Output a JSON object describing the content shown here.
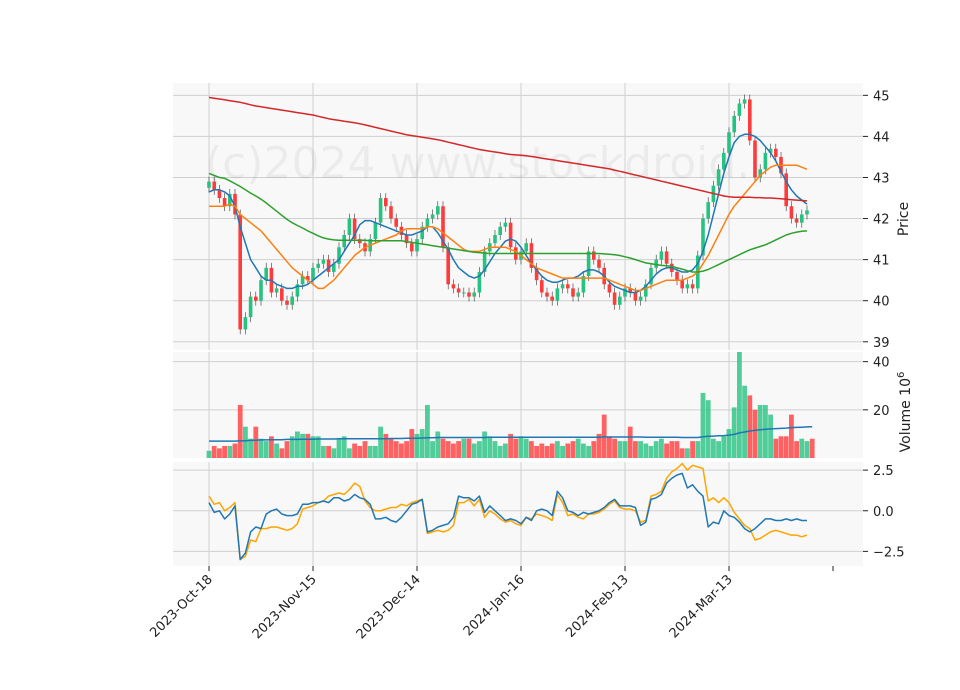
{
  "watermark": "(c)2024 www.stockdroid.",
  "colors": {
    "up": "#26c281",
    "down": "#ff3b3b",
    "ma_short": "#1f77b4",
    "ma_mid": "#ff7f0e",
    "ma_long": "#2ca02c",
    "ma_200": "#d62728",
    "volume_ma": "#1f77b4",
    "osc_main": "#1f77b4",
    "osc_signal": "#ffa500",
    "grid": "#d0d0d0",
    "panel_bg": "#f8f8f8"
  },
  "chart_data": [
    {
      "type": "candlestick",
      "panel": "price",
      "ylabel": "Price",
      "ylim": [
        38.8,
        45.3
      ],
      "yticks": [
        39,
        40,
        41,
        42,
        43,
        44,
        45
      ],
      "x_tick_labels": [
        "2023-Oct-18",
        "2023-Nov-15",
        "2023-Dec-14",
        "2024-Jan-16",
        "2024-Feb-13",
        "2024-Mar-13"
      ],
      "x_tick_index": [
        0,
        20,
        40,
        60,
        80,
        100
      ],
      "grid": true,
      "closes": [
        42.9,
        42.7,
        42.5,
        42.3,
        42.6,
        42.1,
        39.3,
        39.6,
        40.1,
        40.0,
        40.5,
        40.8,
        40.2,
        40.3,
        40.0,
        39.9,
        40.1,
        40.4,
        40.6,
        40.5,
        40.8,
        40.9,
        41.0,
        40.7,
        40.9,
        41.3,
        41.6,
        42.0,
        41.5,
        41.4,
        41.2,
        41.5,
        41.9,
        42.5,
        42.3,
        42.0,
        41.8,
        41.6,
        41.4,
        41.2,
        41.5,
        41.8,
        42.0,
        42.1,
        42.3,
        41.3,
        40.4,
        40.3,
        40.2,
        40.2,
        40.1,
        40.2,
        40.7,
        41.2,
        41.4,
        41.6,
        41.8,
        41.9,
        41.3,
        41.0,
        41.2,
        41.4,
        40.8,
        40.5,
        40.2,
        40.1,
        40.0,
        40.3,
        40.4,
        40.3,
        40.1,
        40.2,
        40.6,
        41.2,
        41.0,
        40.8,
        40.4,
        40.2,
        39.9,
        40.1,
        40.3,
        40.2,
        40.0,
        40.1,
        40.4,
        40.8,
        41.0,
        41.2,
        40.9,
        40.7,
        40.5,
        40.3,
        40.4,
        40.3,
        41.1,
        42.0,
        42.4,
        42.8,
        43.2,
        43.6,
        44.1,
        44.5,
        44.8,
        44.9,
        43.9,
        43.0,
        43.2,
        43.6,
        43.7,
        43.5,
        43.1,
        42.3,
        42.0,
        41.9,
        42.1,
        42.2
      ],
      "series": [
        {
          "name": "",
          "role": "ma_short",
          "values": [
            42.65,
            42.7,
            42.7,
            42.65,
            42.55,
            42.3,
            41.8,
            41.4,
            41.0,
            40.8,
            40.6,
            40.5,
            40.5,
            40.4,
            40.35,
            40.3,
            40.3,
            40.35,
            40.35,
            40.4,
            40.5,
            40.6,
            40.7,
            40.8,
            40.9,
            41.0,
            41.2,
            41.4,
            41.6,
            41.85,
            41.95,
            41.95,
            41.9,
            41.85,
            41.8,
            41.75,
            41.7,
            41.65,
            41.6,
            41.6,
            41.65,
            41.7,
            41.8,
            41.8,
            41.65,
            41.45,
            41.25,
            41.0,
            40.8,
            40.7,
            40.6,
            40.55,
            40.6,
            40.75,
            40.95,
            41.15,
            41.3,
            41.45,
            41.5,
            41.45,
            41.3,
            41.1,
            40.9,
            40.75,
            40.6,
            40.5,
            40.45,
            40.45,
            40.5,
            40.55,
            40.55,
            40.6,
            40.7,
            40.75,
            40.75,
            40.7,
            40.6,
            40.45,
            40.35,
            40.3,
            40.25,
            40.2,
            40.2,
            40.25,
            40.35,
            40.5,
            40.65,
            40.75,
            40.8,
            40.8,
            40.75,
            40.7,
            40.7,
            40.75,
            40.9,
            41.2,
            41.6,
            42.1,
            42.6,
            43.1,
            43.5,
            43.85,
            44.0,
            44.05,
            44.05,
            44.0,
            43.9,
            43.75,
            43.6,
            43.4,
            43.15,
            42.9,
            42.7,
            42.55,
            42.45,
            42.35
          ]
        },
        {
          "name": "",
          "role": "ma_mid",
          "values": [
            42.3,
            42.3,
            42.3,
            42.3,
            42.35,
            42.3,
            42.1,
            42.0,
            41.9,
            41.8,
            41.7,
            41.55,
            41.4,
            41.25,
            41.1,
            40.95,
            40.8,
            40.7,
            40.6,
            40.5,
            40.4,
            40.3,
            40.3,
            40.4,
            40.5,
            40.65,
            40.8,
            40.95,
            41.1,
            41.2,
            41.3,
            41.35,
            41.4,
            41.45,
            41.5,
            41.55,
            41.6,
            41.7,
            41.75,
            41.75,
            41.75,
            41.75,
            41.8,
            41.8,
            41.75,
            41.65,
            41.55,
            41.45,
            41.35,
            41.25,
            41.2,
            41.2,
            41.2,
            41.25,
            41.3,
            41.3,
            41.3,
            41.3,
            41.25,
            41.2,
            41.1,
            41.0,
            40.9,
            40.8,
            40.75,
            40.7,
            40.65,
            40.6,
            40.55,
            40.55,
            40.55,
            40.55,
            40.55,
            40.55,
            40.55,
            40.55,
            40.55,
            40.5,
            40.45,
            40.4,
            40.35,
            40.3,
            40.25,
            40.25,
            40.3,
            40.35,
            40.4,
            40.45,
            40.5,
            40.5,
            40.5,
            40.5,
            40.55,
            40.6,
            40.7,
            40.9,
            41.1,
            41.35,
            41.6,
            41.85,
            42.1,
            42.3,
            42.45,
            42.6,
            42.75,
            42.9,
            43.05,
            43.15,
            43.25,
            43.3,
            43.3,
            43.3,
            43.3,
            43.3,
            43.25,
            43.2
          ]
        },
        {
          "name": "",
          "role": "ma_long",
          "values": [
            43.1,
            43.05,
            43.0,
            42.98,
            42.92,
            42.85,
            42.78,
            42.7,
            42.62,
            42.55,
            42.47,
            42.38,
            42.28,
            42.18,
            42.08,
            41.98,
            41.9,
            41.83,
            41.77,
            41.7,
            41.64,
            41.58,
            41.53,
            41.5,
            41.48,
            41.47,
            41.47,
            41.47,
            41.47,
            41.47,
            41.47,
            41.46,
            41.46,
            41.46,
            41.46,
            41.46,
            41.46,
            41.46,
            41.44,
            41.42,
            41.4,
            41.38,
            41.36,
            41.34,
            41.32,
            41.3,
            41.28,
            41.26,
            41.24,
            41.22,
            41.2,
            41.18,
            41.17,
            41.16,
            41.15,
            41.15,
            41.15,
            41.15,
            41.15,
            41.15,
            41.15,
            41.15,
            41.15,
            41.15,
            41.15,
            41.15,
            41.15,
            41.15,
            41.15,
            41.15,
            41.15,
            41.15,
            41.15,
            41.15,
            41.15,
            41.15,
            41.14,
            41.13,
            41.12,
            41.1,
            41.07,
            41.04,
            41.0,
            40.96,
            40.92,
            40.9,
            40.88,
            40.86,
            40.85,
            40.84,
            40.8,
            40.77,
            40.73,
            40.7,
            40.7,
            40.72,
            40.76,
            40.82,
            40.88,
            40.94,
            41.0,
            41.06,
            41.12,
            41.18,
            41.24,
            41.28,
            41.32,
            41.36,
            41.42,
            41.48,
            41.54,
            41.6,
            41.64,
            41.67,
            41.69,
            41.7
          ]
        },
        {
          "name": "",
          "role": "ma_200",
          "values": [
            44.95,
            44.93,
            44.91,
            44.89,
            44.87,
            44.85,
            44.83,
            44.8,
            44.77,
            44.74,
            44.72,
            44.7,
            44.68,
            44.66,
            44.64,
            44.62,
            44.6,
            44.58,
            44.56,
            44.54,
            44.52,
            44.49,
            44.46,
            44.43,
            44.41,
            44.39,
            44.37,
            44.35,
            44.33,
            44.31,
            44.28,
            44.25,
            44.22,
            44.19,
            44.16,
            44.13,
            44.1,
            44.07,
            44.04,
            44.02,
            44.0,
            43.98,
            43.96,
            43.94,
            43.92,
            43.89,
            43.86,
            43.83,
            43.8,
            43.77,
            43.74,
            43.71,
            43.68,
            43.66,
            43.64,
            43.62,
            43.6,
            43.58,
            43.56,
            43.55,
            43.54,
            43.53,
            43.51,
            43.49,
            43.47,
            43.45,
            43.43,
            43.41,
            43.39,
            43.37,
            43.35,
            43.33,
            43.31,
            43.29,
            43.27,
            43.25,
            43.23,
            43.21,
            43.18,
            43.15,
            43.12,
            43.09,
            43.06,
            43.03,
            43.0,
            42.97,
            42.94,
            42.91,
            42.88,
            42.85,
            42.82,
            42.79,
            42.76,
            42.73,
            42.7,
            42.67,
            42.64,
            42.61,
            42.58,
            42.55,
            42.53,
            42.52,
            42.52,
            42.52,
            42.52,
            42.51,
            42.51,
            42.5,
            42.5,
            42.49,
            42.48,
            42.47,
            42.46,
            42.45,
            42.44,
            42.43
          ]
        }
      ]
    },
    {
      "type": "bar",
      "panel": "volume",
      "ylabel": "Volume",
      "ylabel_exponent": "6",
      "ylim": [
        0,
        44
      ],
      "yticks": [
        20,
        40
      ],
      "values": [
        3,
        5,
        4,
        5,
        5,
        6,
        22,
        13,
        8,
        13,
        8,
        7,
        9,
        6,
        4,
        7,
        9,
        11,
        10,
        10,
        9,
        9,
        5,
        5,
        4,
        8,
        9,
        4,
        6,
        5,
        7,
        5,
        5,
        13,
        10,
        8,
        7,
        6,
        7,
        12,
        10,
        12,
        22,
        7,
        11,
        8,
        7,
        6,
        7,
        8,
        8,
        6,
        7,
        11,
        9,
        7,
        5,
        6,
        10,
        8,
        9,
        8,
        7,
        5,
        6,
        5,
        6,
        7,
        5,
        6,
        7,
        8,
        6,
        5,
        7,
        10,
        18,
        9,
        8,
        7,
        7,
        13,
        7,
        7,
        6,
        5,
        7,
        8,
        6,
        7,
        7,
        4,
        4,
        7,
        7,
        27,
        24,
        8,
        7,
        9,
        12,
        21,
        44,
        30,
        26,
        20,
        22,
        22,
        18,
        8,
        9,
        9,
        18,
        7,
        8,
        7,
        8
      ],
      "series": [
        {
          "name": "",
          "role": "volume_ma",
          "values": [
            7,
            7,
            7,
            7,
            7,
            7,
            7.1,
            7.2,
            7.3,
            7.4,
            7.5,
            7.5,
            7.6,
            7.6,
            7.6,
            7.7,
            7.7,
            7.7,
            7.8,
            7.8,
            7.8,
            7.9,
            7.9,
            7.9,
            7.9,
            8,
            8,
            8,
            8,
            8,
            8,
            8,
            8,
            8,
            8,
            8.1,
            8.1,
            8.1,
            8.2,
            8.2,
            8.2,
            8.3,
            8.4,
            8.4,
            8.5,
            8.5,
            8.5,
            8.5,
            8.5,
            8.5,
            8.5,
            8.5,
            8.5,
            8.5,
            8.6,
            8.6,
            8.6,
            8.6,
            8.6,
            8.6,
            8.6,
            8.6,
            8.6,
            8.6,
            8.6,
            8.6,
            8.6,
            8.6,
            8.6,
            8.6,
            8.6,
            8.6,
            8.6,
            8.6,
            8.6,
            8.6,
            8.7,
            8.7,
            8.7,
            8.7,
            8.7,
            8.7,
            8.7,
            8.7,
            8.6,
            8.6,
            8.6,
            8.6,
            8.6,
            8.6,
            8.6,
            8.5,
            8.5,
            8.5,
            8.5,
            8.8,
            9.0,
            9.1,
            9.2,
            9.3,
            9.5,
            9.8,
            10.4,
            10.8,
            11.2,
            11.5,
            11.7,
            11.9,
            12.1,
            12.2,
            12.3,
            12.4,
            12.6,
            12.7,
            12.8,
            12.9,
            13.0
          ]
        }
      ]
    },
    {
      "type": "line",
      "panel": "oscillator",
      "ylim": [
        -3.4,
        3.0
      ],
      "yticks": [
        2.5,
        0.0,
        -2.5
      ],
      "ytick_labels": [
        "2.5",
        "0.0",
        "−2.5"
      ],
      "series": [
        {
          "name": "",
          "role": "osc_main",
          "values": [
            0.5,
            -0.1,
            0.0,
            -0.5,
            -0.2,
            0.3,
            -3.0,
            -2.6,
            -1.3,
            -1.0,
            -1.1,
            -0.2,
            0.0,
            0.1,
            -0.2,
            -0.3,
            -0.3,
            -0.2,
            0.4,
            0.4,
            0.5,
            0.5,
            0.6,
            0.5,
            0.8,
            0.8,
            0.6,
            0.7,
            1.0,
            0.8,
            0.7,
            0.4,
            -0.5,
            -0.5,
            -0.4,
            -0.6,
            -0.7,
            -0.4,
            0.0,
            0.4,
            0.5,
            0.7,
            -1.3,
            -1.2,
            -1.0,
            -0.9,
            -0.8,
            -0.4,
            0.9,
            0.8,
            0.8,
            0.6,
            0.9,
            -0.1,
            0.3,
            0.0,
            -0.3,
            -0.6,
            -0.5,
            -0.6,
            -0.8,
            -0.4,
            -0.6,
            0.0,
            0.1,
            0.0,
            -0.3,
            1.2,
            0.8,
            0.0,
            -0.1,
            -0.3,
            -0.1,
            -0.2,
            -0.1,
            0.0,
            0.2,
            0.5,
            0.7,
            0.3,
            0.3,
            0.3,
            0.2,
            -0.9,
            -0.7,
            0.7,
            0.8,
            1.0,
            1.7,
            2.0,
            2.2,
            2.3,
            1.4,
            1.6,
            1.2,
            0.9,
            -1.0,
            -0.7,
            -0.8,
            0.0,
            -0.3,
            -0.4,
            -0.7,
            -1.1,
            -1.3,
            -1.1,
            -0.8,
            -0.5,
            -0.5,
            -0.6,
            -0.6,
            -0.5,
            -0.6,
            -0.5,
            -0.6,
            -0.6
          ]
        },
        {
          "name": "",
          "role": "osc_signal",
          "values": [
            0.9,
            0.4,
            0.5,
            0.0,
            0.2,
            0.5,
            -3.0,
            -2.8,
            -1.8,
            -1.9,
            -1.1,
            -1.1,
            -1.0,
            -1.0,
            -1.1,
            -1.2,
            -1.1,
            -0.8,
            0.1,
            0.2,
            0.3,
            0.5,
            0.6,
            0.9,
            1.0,
            1.1,
            1.0,
            1.3,
            1.7,
            1.5,
            0.6,
            0.2,
            0.0,
            0.0,
            0.1,
            0.2,
            0.2,
            0.4,
            0.3,
            0.5,
            0.6,
            0.7,
            -1.4,
            -1.3,
            -1.2,
            -1.3,
            -1.2,
            -0.9,
            0.5,
            0.5,
            0.7,
            0.3,
            0.7,
            -0.4,
            0.0,
            -0.2,
            -0.5,
            -0.7,
            -0.6,
            -0.8,
            -0.9,
            -0.4,
            -0.5,
            -0.2,
            -0.3,
            -0.4,
            -0.6,
            1.0,
            0.5,
            -0.3,
            -0.2,
            -0.4,
            -0.5,
            -0.2,
            -0.2,
            -0.1,
            0.1,
            0.4,
            0.6,
            0.2,
            0.1,
            0.1,
            0.0,
            -0.7,
            -0.6,
            0.9,
            1.0,
            1.2,
            2.0,
            2.4,
            2.6,
            2.9,
            2.5,
            2.8,
            2.7,
            2.6,
            0.6,
            0.8,
            0.5,
            0.8,
            0.5,
            -0.1,
            -0.5,
            -0.9,
            -1.1,
            -1.8,
            -1.7,
            -1.5,
            -1.3,
            -1.2,
            -1.3,
            -1.4,
            -1.5,
            -1.5,
            -1.6,
            -1.5
          ]
        }
      ]
    }
  ]
}
